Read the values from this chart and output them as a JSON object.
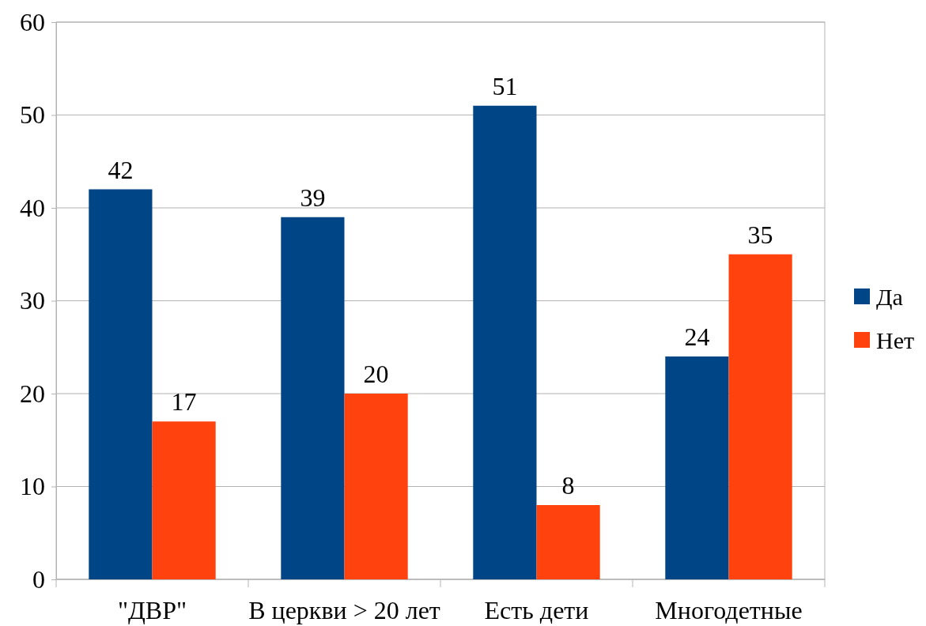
{
  "chart_data": {
    "type": "bar",
    "categories": [
      "\"ДВР\"",
      "В церкви > 20 лет",
      "Есть дети",
      "Многодетные"
    ],
    "series": [
      {
        "name": "Да",
        "color": "#004586",
        "values": [
          42,
          39,
          51,
          24
        ]
      },
      {
        "name": "Нет",
        "color": "#ff420e",
        "values": [
          17,
          20,
          8,
          35
        ]
      }
    ],
    "ylim": [
      0,
      60
    ],
    "yticks": [
      0,
      10,
      20,
      30,
      40,
      50,
      60
    ],
    "grid": "y",
    "legend": "right",
    "data_labels": true
  }
}
